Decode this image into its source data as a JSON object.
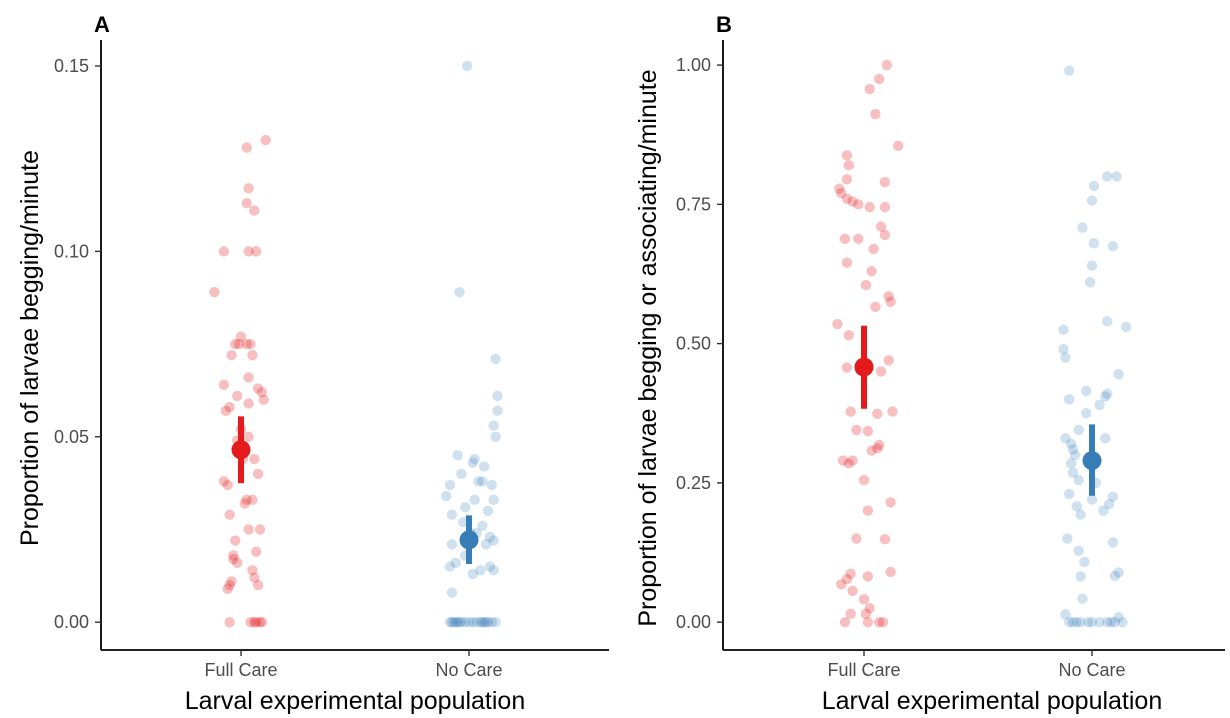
{
  "colors": {
    "Full Care": "#E41A1C",
    "No Care": "#377EB8"
  },
  "chart_data": [
    {
      "type": "scatter",
      "panel": "A",
      "xlabel": "Larval experimental population",
      "ylabel": "Proportion of larvae begging/minute",
      "categories": [
        "Full Care",
        "No Care"
      ],
      "yticks": [
        0.0,
        0.05,
        0.1,
        0.15
      ],
      "ytick_labels": [
        "0.00",
        "0.05",
        "0.10",
        "0.15"
      ],
      "ylim": [
        -0.0075,
        0.157
      ],
      "grid": false,
      "summary": [
        {
          "group": "Full Care",
          "mean": 0.0465,
          "lower": 0.0375,
          "upper": 0.0555
        },
        {
          "group": "No Care",
          "mean": 0.0222,
          "lower": 0.0157,
          "upper": 0.0288
        }
      ],
      "points": {
        "Full Care": [
          [
            -0.06,
            0.0
          ],
          [
            0.05,
            0.0
          ],
          [
            0.07,
            0.0
          ],
          [
            0.08,
            0.0
          ],
          [
            0.1,
            0.0
          ],
          [
            0.11,
            0.0
          ],
          [
            -0.07,
            0.009
          ],
          [
            -0.06,
            0.01
          ],
          [
            -0.05,
            0.011
          ],
          [
            -0.04,
            0.017
          ],
          [
            0.09,
            0.01
          ],
          [
            0.07,
            0.012
          ],
          [
            -0.02,
            0.016
          ],
          [
            0.06,
            0.014
          ],
          [
            -0.04,
            0.018
          ],
          [
            0.08,
            0.019
          ],
          [
            0.1,
            0.025
          ],
          [
            -0.03,
            0.022
          ],
          [
            0.04,
            0.025
          ],
          [
            -0.06,
            0.029
          ],
          [
            0.02,
            0.032
          ],
          [
            0.06,
            0.033
          ],
          [
            0.03,
            0.033
          ],
          [
            -0.09,
            0.038
          ],
          [
            -0.07,
            0.037
          ],
          [
            0.09,
            0.04
          ],
          [
            0.01,
            0.044
          ],
          [
            0.07,
            0.044
          ],
          [
            0.02,
            0.046
          ],
          [
            0.04,
            0.05
          ],
          [
            -0.02,
            0.049
          ],
          [
            0.0,
            0.052
          ],
          [
            -0.08,
            0.057
          ],
          [
            -0.06,
            0.058
          ],
          [
            0.04,
            0.059
          ],
          [
            0.12,
            0.06
          ],
          [
            -0.02,
            0.061
          ],
          [
            0.09,
            0.063
          ],
          [
            0.11,
            0.062
          ],
          [
            0.04,
            0.066
          ],
          [
            -0.09,
            0.064
          ],
          [
            -0.05,
            0.072
          ],
          [
            0.06,
            0.072
          ],
          [
            0.03,
            0.075
          ],
          [
            -0.03,
            0.075
          ],
          [
            0.05,
            0.075
          ],
          [
            0.0,
            0.077
          ],
          [
            -0.01,
            0.075
          ],
          [
            -0.14,
            0.089
          ],
          [
            0.04,
            0.1
          ],
          [
            0.08,
            0.1
          ],
          [
            -0.09,
            0.1
          ],
          [
            0.07,
            0.111
          ],
          [
            0.03,
            0.113
          ],
          [
            0.04,
            0.117
          ],
          [
            0.03,
            0.128
          ],
          [
            0.13,
            0.13
          ]
        ],
        "No Care": [
          [
            -0.1,
            0.0
          ],
          [
            -0.08,
            0.0
          ],
          [
            -0.06,
            0.0
          ],
          [
            -0.04,
            0.0
          ],
          [
            -0.02,
            0.0
          ],
          [
            0.0,
            0.0
          ],
          [
            0.02,
            0.0
          ],
          [
            0.04,
            0.0
          ],
          [
            0.06,
            0.0
          ],
          [
            0.08,
            0.0
          ],
          [
            0.1,
            0.0
          ],
          [
            0.12,
            0.0
          ],
          [
            0.14,
            0.0
          ],
          [
            -0.09,
            0.0
          ],
          [
            0.07,
            0.0
          ],
          [
            0.09,
            0.0
          ],
          [
            -0.07,
            0.0
          ],
          [
            -0.05,
            0.0
          ],
          [
            -0.09,
            0.008
          ],
          [
            -0.1,
            0.015
          ],
          [
            -0.07,
            0.016
          ],
          [
            0.06,
            0.014
          ],
          [
            0.11,
            0.015
          ],
          [
            0.13,
            0.014
          ],
          [
            -0.02,
            0.018
          ],
          [
            0.02,
            0.013
          ],
          [
            0.09,
            0.021
          ],
          [
            -0.09,
            0.021
          ],
          [
            0.13,
            0.022
          ],
          [
            0.11,
            0.023
          ],
          [
            0.04,
            0.024
          ],
          [
            0.01,
            0.024
          ],
          [
            -0.03,
            0.027
          ],
          [
            0.07,
            0.026
          ],
          [
            -0.09,
            0.029
          ],
          [
            -0.02,
            0.031
          ],
          [
            0.03,
            0.033
          ],
          [
            0.1,
            0.03
          ],
          [
            0.13,
            0.033
          ],
          [
            -0.12,
            0.034
          ],
          [
            -0.1,
            0.037
          ],
          [
            0.05,
            0.038
          ],
          [
            0.07,
            0.038
          ],
          [
            0.12,
            0.037
          ],
          [
            -0.04,
            0.04
          ],
          [
            0.08,
            0.042
          ],
          [
            0.03,
            0.044
          ],
          [
            -0.06,
            0.045
          ],
          [
            0.02,
            0.043
          ],
          [
            0.14,
            0.05
          ],
          [
            0.13,
            0.053
          ],
          [
            0.15,
            0.057
          ],
          [
            0.15,
            0.061
          ],
          [
            0.14,
            0.071
          ],
          [
            -0.05,
            0.089
          ],
          [
            -0.01,
            0.15
          ]
        ]
      }
    },
    {
      "type": "scatter",
      "panel": "B",
      "xlabel": "Larval experimental population",
      "ylabel": "Proportion of larvae begging or associating/minute",
      "categories": [
        "Full Care",
        "No Care"
      ],
      "yticks": [
        0.0,
        0.25,
        0.5,
        0.75,
        1.0
      ],
      "ytick_labels": [
        "0.00",
        "0.25",
        "0.50",
        "0.75",
        "1.00"
      ],
      "ylim": [
        -0.05,
        1.045
      ],
      "grid": false,
      "summary": [
        {
          "group": "Full Care",
          "mean": 0.458,
          "lower": 0.383,
          "upper": 0.532
        },
        {
          "group": "No Care",
          "mean": 0.29,
          "lower": 0.227,
          "upper": 0.355
        }
      ],
      "points": {
        "Full Care": [
          [
            -0.1,
            0.0
          ],
          [
            0.02,
            0.0
          ],
          [
            0.1,
            0.0
          ],
          [
            0.08,
            0.0
          ],
          [
            -0.07,
            0.015
          ],
          [
            0.01,
            0.015
          ],
          [
            0.03,
            0.025
          ],
          [
            -0.12,
            0.068
          ],
          [
            -0.07,
            0.087
          ],
          [
            0.0,
            0.041
          ],
          [
            -0.06,
            0.056
          ],
          [
            0.02,
            0.082
          ],
          [
            0.14,
            0.09
          ],
          [
            -0.09,
            0.077
          ],
          [
            0.11,
            0.149
          ],
          [
            -0.04,
            0.15
          ],
          [
            0.02,
            0.2
          ],
          [
            0.14,
            0.215
          ],
          [
            0.0,
            0.255
          ],
          [
            -0.08,
            0.285
          ],
          [
            -0.06,
            0.29
          ],
          [
            -0.11,
            0.29
          ],
          [
            0.04,
            0.308
          ],
          [
            0.07,
            0.312
          ],
          [
            0.08,
            0.318
          ],
          [
            -0.04,
            0.345
          ],
          [
            0.02,
            0.343
          ],
          [
            0.07,
            0.374
          ],
          [
            -0.07,
            0.378
          ],
          [
            0.15,
            0.378
          ],
          [
            0.09,
            0.45
          ],
          [
            0.13,
            0.47
          ],
          [
            -0.02,
            0.452
          ],
          [
            -0.09,
            0.457
          ],
          [
            -0.08,
            0.515
          ],
          [
            -0.14,
            0.535
          ],
          [
            0.06,
            0.566
          ],
          [
            0.14,
            0.575
          ],
          [
            0.13,
            0.585
          ],
          [
            0.01,
            0.605
          ],
          [
            0.04,
            0.63
          ],
          [
            -0.09,
            0.645
          ],
          [
            0.05,
            0.67
          ],
          [
            -0.03,
            0.688
          ],
          [
            0.11,
            0.695
          ],
          [
            -0.1,
            0.688
          ],
          [
            0.09,
            0.71
          ],
          [
            0.03,
            0.745
          ],
          [
            -0.09,
            0.76
          ],
          [
            0.11,
            0.745
          ],
          [
            -0.12,
            0.77
          ],
          [
            -0.06,
            0.755
          ],
          [
            -0.03,
            0.75
          ],
          [
            -0.13,
            0.778
          ],
          [
            -0.09,
            0.795
          ],
          [
            0.11,
            0.79
          ],
          [
            -0.08,
            0.82
          ],
          [
            -0.09,
            0.838
          ],
          [
            0.18,
            0.855
          ],
          [
            0.06,
            0.912
          ],
          [
            0.03,
            0.957
          ],
          [
            0.08,
            0.975
          ],
          [
            0.12,
            1.0
          ]
        ],
        "No Care": [
          [
            -0.12,
            0.0
          ],
          [
            -0.08,
            0.0
          ],
          [
            -0.06,
            0.0
          ],
          [
            -0.02,
            0.0
          ],
          [
            0.0,
            0.0
          ],
          [
            0.04,
            0.0
          ],
          [
            0.08,
            0.0
          ],
          [
            0.12,
            0.0
          ],
          [
            0.16,
            0.0
          ],
          [
            -0.1,
            0.0
          ],
          [
            0.1,
            0.0
          ],
          [
            -0.14,
            0.014
          ],
          [
            0.14,
            0.009
          ],
          [
            -0.05,
            0.042
          ],
          [
            -0.06,
            0.082
          ],
          [
            -0.04,
            0.108
          ],
          [
            0.12,
            0.083
          ],
          [
            0.14,
            0.089
          ],
          [
            -0.07,
            0.128
          ],
          [
            -0.13,
            0.15
          ],
          [
            0.11,
            0.143
          ],
          [
            -0.06,
            0.193
          ],
          [
            -0.08,
            0.208
          ],
          [
            0.06,
            0.2
          ],
          [
            0.09,
            0.212
          ],
          [
            0.11,
            0.225
          ],
          [
            -0.12,
            0.23
          ],
          [
            0.0,
            0.22
          ],
          [
            0.02,
            0.25
          ],
          [
            -0.07,
            0.255
          ],
          [
            -0.1,
            0.268
          ],
          [
            -0.11,
            0.285
          ],
          [
            -0.09,
            0.3
          ],
          [
            -0.1,
            0.31
          ],
          [
            0.07,
            0.33
          ],
          [
            -0.14,
            0.33
          ],
          [
            -0.07,
            0.345
          ],
          [
            -0.11,
            0.32
          ],
          [
            -0.03,
            0.375
          ],
          [
            0.04,
            0.39
          ],
          [
            0.07,
            0.405
          ],
          [
            0.08,
            0.41
          ],
          [
            -0.03,
            0.415
          ],
          [
            -0.12,
            0.4
          ],
          [
            0.14,
            0.445
          ],
          [
            -0.14,
            0.475
          ],
          [
            -0.15,
            0.49
          ],
          [
            -0.15,
            0.525
          ],
          [
            0.08,
            0.54
          ],
          [
            0.18,
            0.53
          ],
          [
            -0.01,
            0.61
          ],
          [
            0.0,
            0.64
          ],
          [
            0.01,
            0.68
          ],
          [
            0.11,
            0.675
          ],
          [
            -0.05,
            0.708
          ],
          [
            0.0,
            0.757
          ],
          [
            0.01,
            0.783
          ],
          [
            0.08,
            0.8
          ],
          [
            0.13,
            0.8
          ],
          [
            -0.12,
            0.99
          ]
        ]
      }
    }
  ]
}
